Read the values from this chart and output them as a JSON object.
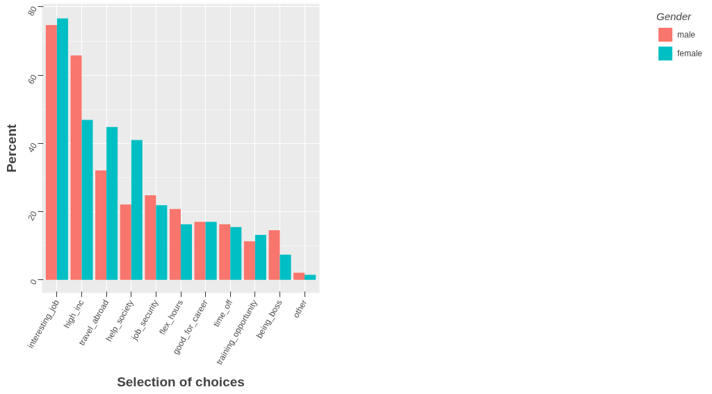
{
  "chart_data": {
    "type": "bar",
    "xlabel": "Selection of choices",
    "ylabel": "Percent",
    "legend_title": "Gender",
    "categories": [
      "interesting_job",
      "high_inc",
      "travel_abroad",
      "help_society",
      "job_security",
      "flex_hours",
      "good_for_career",
      "time_off",
      "training_opportunity",
      "being_boss",
      "other"
    ],
    "series": [
      {
        "name": "male",
        "color": "#f8766d",
        "values": [
          74.7,
          65.8,
          32.1,
          22.1,
          24.8,
          20.8,
          17.0,
          16.3,
          11.3,
          14.6,
          2.1
        ]
      },
      {
        "name": "female",
        "color": "#00bfc4",
        "values": [
          76.6,
          46.9,
          44.8,
          41.0,
          21.9,
          16.3,
          17.0,
          15.5,
          13.2,
          7.4,
          1.5
        ]
      }
    ],
    "ylim": [
      -3.8,
      80.9
    ],
    "yticks": [
      0,
      20,
      40,
      60,
      80
    ],
    "grid": true,
    "legend": "right"
  }
}
